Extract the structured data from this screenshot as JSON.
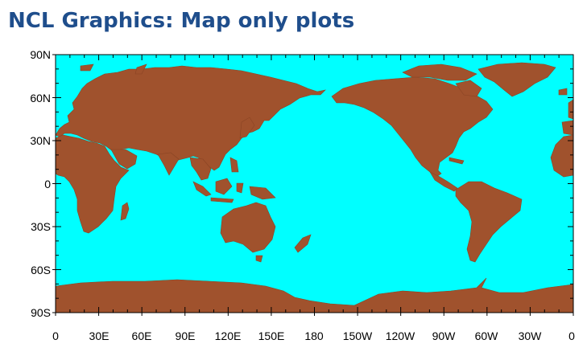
{
  "page": {
    "title": "NCL Graphics: Map only plots"
  },
  "map": {
    "projection": "cylindrical equidistant",
    "center_longitude": 180,
    "ocean_color": "#00ffff",
    "land_color": "#a0522d",
    "lat_labels": [
      "90N",
      "60N",
      "30N",
      "0",
      "30S",
      "60S",
      "90S"
    ],
    "lon_labels": [
      "0",
      "30E",
      "60E",
      "90E",
      "120E",
      "150E",
      "180",
      "150W",
      "120W",
      "90W",
      "60W",
      "30W",
      "0"
    ]
  }
}
